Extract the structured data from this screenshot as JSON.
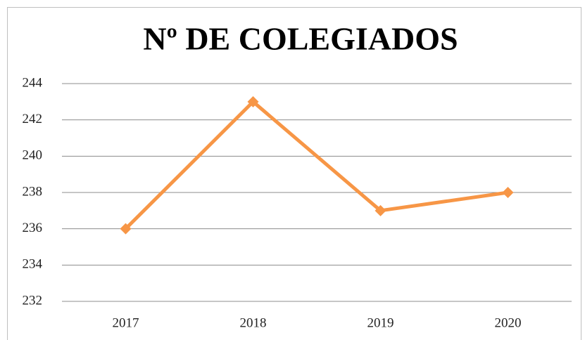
{
  "chart_data": {
    "type": "line",
    "title": "Nº DE COLEGIADOS",
    "categories": [
      "2017",
      "2018",
      "2019",
      "2020"
    ],
    "values": [
      236,
      243,
      237,
      238
    ],
    "color": "#f79646",
    "ylim": [
      232,
      244
    ],
    "yticks": [
      232,
      234,
      236,
      238,
      240,
      242,
      244
    ],
    "grid": true
  }
}
